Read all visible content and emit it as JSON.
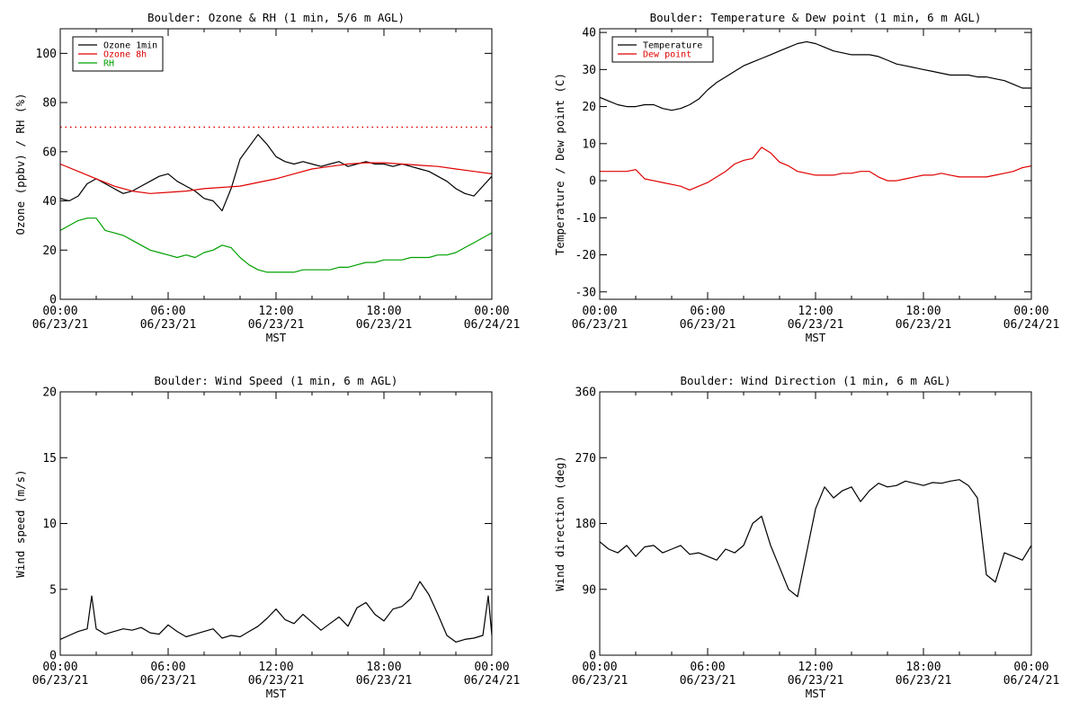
{
  "chart_data": [
    {
      "type": "line",
      "title": "Boulder: Ozone & RH (1 min, 5/6 m AGL)",
      "xlabel": "MST",
      "ylabel": "Ozone (ppbv) / RH (%)",
      "ylim": [
        0,
        110
      ],
      "yticks": [
        0,
        20,
        40,
        60,
        80,
        100
      ],
      "xlim_hours": [
        0,
        24
      ],
      "xtick_labels": [
        [
          "00:00",
          "06/23/21"
        ],
        [
          "06:00",
          "06/23/21"
        ],
        [
          "12:00",
          "06/23/21"
        ],
        [
          "18:00",
          "06/23/21"
        ],
        [
          "00:00",
          "06/24/21"
        ]
      ],
      "reference_line": {
        "value": 70,
        "style": "dotted",
        "color": "#e00000"
      },
      "legend": {
        "placement": "top-left",
        "entries": [
          {
            "label": "Ozone 1min",
            "color": "#000000"
          },
          {
            "label": "Ozone 8h",
            "color": "#e00000"
          },
          {
            "label": "RH",
            "color": "#00a000"
          }
        ]
      },
      "series": [
        {
          "name": "Ozone 1min",
          "color": "#000000",
          "x": [
            0,
            0.5,
            1,
            1.5,
            2,
            2.5,
            3,
            3.5,
            4,
            4.5,
            5,
            5.5,
            6,
            6.5,
            7,
            7.5,
            8,
            8.5,
            9,
            9.5,
            10,
            10.5,
            11,
            11.5,
            12,
            12.5,
            13,
            13.5,
            14,
            14.5,
            15,
            15.5,
            16,
            16.5,
            17,
            17.5,
            18,
            18.5,
            19,
            19.5,
            20,
            20.5,
            21,
            21.5,
            22,
            22.5,
            23,
            23.5,
            24
          ],
          "y": [
            41,
            40,
            42,
            47,
            49,
            47,
            45,
            43,
            44,
            46,
            48,
            50,
            51,
            48,
            46,
            44,
            41,
            40,
            36,
            45,
            57,
            62,
            67,
            63,
            58,
            56,
            55,
            56,
            55,
            54,
            55,
            56,
            54,
            55,
            56,
            55,
            55,
            54,
            55,
            54,
            53,
            52,
            50,
            48,
            45,
            43,
            42,
            46,
            50
          ]
        },
        {
          "name": "Ozone 8h",
          "color": "#e00000",
          "x": [
            0,
            1,
            2,
            3,
            4,
            5,
            6,
            7,
            8,
            9,
            10,
            11,
            12,
            13,
            14,
            15,
            16,
            17,
            18,
            19,
            20,
            21,
            22,
            23,
            24
          ],
          "y": [
            55,
            52,
            49,
            46,
            44,
            43,
            43.5,
            44,
            45,
            45.5,
            46,
            47.5,
            49,
            51,
            53,
            54,
            55,
            55.5,
            55.5,
            55,
            54.5,
            54,
            53,
            52,
            51
          ]
        },
        {
          "name": "RH",
          "color": "#00a000",
          "x": [
            0,
            0.5,
            1,
            1.5,
            2,
            2.5,
            3,
            3.5,
            4,
            4.5,
            5,
            5.5,
            6,
            6.5,
            7,
            7.5,
            8,
            8.5,
            9,
            9.5,
            10,
            10.5,
            11,
            11.5,
            12,
            12.5,
            13,
            13.5,
            14,
            14.5,
            15,
            15.5,
            16,
            16.5,
            17,
            17.5,
            18,
            18.5,
            19,
            19.5,
            20,
            20.5,
            21,
            21.5,
            22,
            22.5,
            23,
            23.5,
            24
          ],
          "y": [
            28,
            30,
            32,
            33,
            33,
            28,
            27,
            26,
            24,
            22,
            20,
            19,
            18,
            17,
            18,
            17,
            19,
            20,
            22,
            21,
            17,
            14,
            12,
            11,
            11,
            11,
            11,
            12,
            12,
            12,
            12,
            13,
            13,
            14,
            15,
            15,
            16,
            16,
            16,
            17,
            17,
            17,
            18,
            18,
            19,
            21,
            23,
            25,
            27
          ]
        }
      ]
    },
    {
      "type": "line",
      "title": "Boulder: Temperature & Dew point (1 min, 6 m AGL)",
      "xlabel": "MST",
      "ylabel": "Temperature / Dew point (C)",
      "ylim": [
        -32,
        41
      ],
      "yticks": [
        -30,
        -20,
        -10,
        0,
        10,
        20,
        30,
        40
      ],
      "xlim_hours": [
        0,
        24
      ],
      "xtick_labels": [
        [
          "00:00",
          "06/23/21"
        ],
        [
          "06:00",
          "06/23/21"
        ],
        [
          "12:00",
          "06/23/21"
        ],
        [
          "18:00",
          "06/23/21"
        ],
        [
          "00:00",
          "06/24/21"
        ]
      ],
      "legend": {
        "placement": "top-left",
        "entries": [
          {
            "label": "Temperature",
            "color": "#000000"
          },
          {
            "label": "Dew point",
            "color": "#e00000"
          }
        ]
      },
      "series": [
        {
          "name": "Temperature",
          "color": "#000000",
          "x": [
            0,
            0.5,
            1,
            1.5,
            2,
            2.5,
            3,
            3.5,
            4,
            4.5,
            5,
            5.5,
            6,
            6.5,
            7,
            7.5,
            8,
            8.5,
            9,
            9.5,
            10,
            10.5,
            11,
            11.5,
            12,
            12.5,
            13,
            13.5,
            14,
            14.5,
            15,
            15.5,
            16,
            16.5,
            17,
            17.5,
            18,
            18.5,
            19,
            19.5,
            20,
            20.5,
            21,
            21.5,
            22,
            22.5,
            23,
            23.5,
            24
          ],
          "y": [
            22.5,
            21.5,
            20.5,
            20,
            20,
            20.5,
            20.5,
            19.5,
            19,
            19.5,
            20.5,
            22,
            24.5,
            26.5,
            28,
            29.5,
            31,
            32,
            33,
            34,
            35,
            36,
            37,
            37.5,
            37,
            36,
            35,
            34.5,
            34,
            34,
            34,
            33.5,
            32.5,
            31.5,
            31,
            30.5,
            30,
            29.5,
            29,
            28.5,
            28.5,
            28.5,
            28,
            28,
            27.5,
            27,
            26,
            25,
            25
          ]
        },
        {
          "name": "Dew point",
          "color": "#e00000",
          "x": [
            0,
            0.5,
            1,
            1.5,
            2,
            2.5,
            3,
            3.5,
            4,
            4.5,
            5,
            5.5,
            6,
            6.5,
            7,
            7.5,
            8,
            8.5,
            9,
            9.5,
            10,
            10.5,
            11,
            11.5,
            12,
            12.5,
            13,
            13.5,
            14,
            14.5,
            15,
            15.5,
            16,
            16.5,
            17,
            17.5,
            18,
            18.5,
            19,
            19.5,
            20,
            20.5,
            21,
            21.5,
            22,
            22.5,
            23,
            23.5,
            24
          ],
          "y": [
            2.5,
            2.5,
            2.5,
            2.5,
            3,
            0.5,
            0,
            -0.5,
            -1,
            -1.5,
            -2.5,
            -1.5,
            -0.5,
            1,
            2.5,
            4.5,
            5.5,
            6,
            9,
            7.5,
            5,
            4,
            2.5,
            2,
            1.5,
            1.5,
            1.5,
            2,
            2,
            2.5,
            2.5,
            1,
            0,
            0,
            0.5,
            1,
            1.5,
            1.5,
            2,
            1.5,
            1,
            1,
            1,
            1,
            1.5,
            2,
            2.5,
            3.5,
            4
          ]
        }
      ]
    },
    {
      "type": "line",
      "title": "Boulder: Wind Speed (1 min, 6 m AGL)",
      "xlabel": "MST",
      "ylabel": "Wind speed (m/s)",
      "ylim": [
        0,
        20
      ],
      "yticks": [
        0,
        5,
        10,
        15,
        20
      ],
      "xlim_hours": [
        0,
        24
      ],
      "xtick_labels": [
        [
          "00:00",
          "06/23/21"
        ],
        [
          "06:00",
          "06/23/21"
        ],
        [
          "12:00",
          "06/23/21"
        ],
        [
          "18:00",
          "06/23/21"
        ],
        [
          "00:00",
          "06/24/21"
        ]
      ],
      "series": [
        {
          "name": "Wind speed",
          "color": "#000000",
          "x": [
            0,
            0.5,
            1,
            1.5,
            1.75,
            2,
            2.5,
            3,
            3.5,
            4,
            4.5,
            5,
            5.5,
            6,
            6.5,
            7,
            7.5,
            8,
            8.5,
            9,
            9.5,
            10,
            10.5,
            11,
            11.5,
            12,
            12.5,
            13,
            13.5,
            14,
            14.5,
            15,
            15.5,
            16,
            16.5,
            17,
            17.5,
            18,
            18.5,
            19,
            19.5,
            20,
            20.5,
            21,
            21.5,
            22,
            22.5,
            23,
            23.5,
            23.8,
            24
          ],
          "y": [
            1.2,
            1.5,
            1.8,
            2.0,
            4.5,
            2.0,
            1.6,
            1.8,
            2.0,
            1.9,
            2.1,
            1.7,
            1.6,
            2.3,
            1.8,
            1.4,
            1.6,
            1.8,
            2.0,
            1.3,
            1.5,
            1.4,
            1.8,
            2.2,
            2.8,
            3.5,
            2.7,
            2.4,
            3.1,
            2.5,
            1.9,
            2.4,
            2.9,
            2.2,
            3.6,
            4.0,
            3.1,
            2.6,
            3.5,
            3.7,
            4.3,
            5.6,
            4.6,
            3.1,
            1.5,
            1.0,
            1.2,
            1.3,
            1.5,
            4.5,
            1.5
          ]
        }
      ]
    },
    {
      "type": "line",
      "title": "Boulder: Wind Direction (1 min, 6 m AGL)",
      "xlabel": "MST",
      "ylabel": "Wind direction (deg)",
      "ylim": [
        0,
        360
      ],
      "yticks": [
        0,
        90,
        180,
        270,
        360
      ],
      "xlim_hours": [
        0,
        24
      ],
      "xtick_labels": [
        [
          "00:00",
          "06/23/21"
        ],
        [
          "06:00",
          "06/23/21"
        ],
        [
          "12:00",
          "06/23/21"
        ],
        [
          "18:00",
          "06/23/21"
        ],
        [
          "00:00",
          "06/24/21"
        ]
      ],
      "series": [
        {
          "name": "Wind direction",
          "color": "#000000",
          "x": [
            0,
            0.5,
            1,
            1.5,
            2,
            2.5,
            3,
            3.5,
            4,
            4.5,
            5,
            5.5,
            6,
            6.5,
            7,
            7.5,
            8,
            8.5,
            9,
            9.5,
            10,
            10.5,
            11,
            11.5,
            12,
            12.5,
            13,
            13.5,
            14,
            14.5,
            15,
            15.5,
            16,
            16.5,
            17,
            17.5,
            18,
            18.5,
            19,
            19.5,
            20,
            20.5,
            21,
            21.5,
            22,
            22.5,
            23,
            23.5,
            24
          ],
          "y": [
            155,
            145,
            140,
            150,
            135,
            148,
            150,
            140,
            145,
            150,
            138,
            140,
            135,
            130,
            145,
            140,
            150,
            180,
            190,
            150,
            120,
            90,
            80,
            140,
            200,
            230,
            215,
            225,
            230,
            210,
            225,
            235,
            230,
            232,
            238,
            235,
            232,
            236,
            235,
            238,
            240,
            232,
            215,
            110,
            100,
            140,
            135,
            130,
            150
          ]
        }
      ]
    }
  ]
}
